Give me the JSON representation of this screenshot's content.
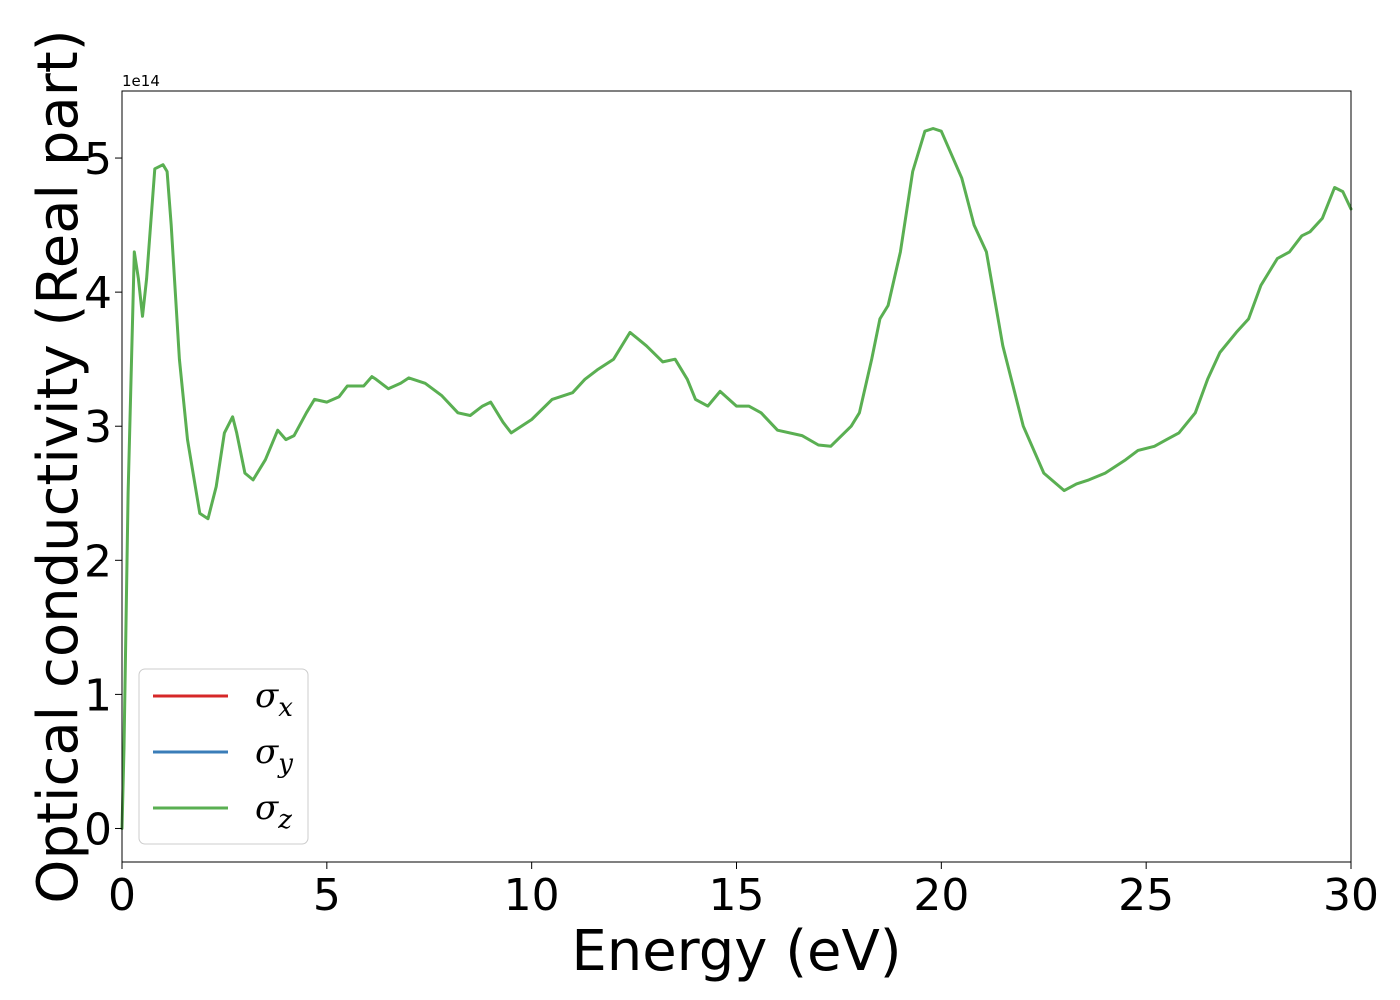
{
  "chart_data": {
    "type": "line",
    "title": "",
    "xlabel": "Energy (eV)",
    "ylabel": "Optical conductivity (Real part)",
    "y_offset_text": "1e14",
    "xlim": [
      0,
      30
    ],
    "ylim": [
      -0.25,
      5.5
    ],
    "y_scale_multiplier": 100000000000000.0,
    "x_ticks": [
      0,
      5,
      10,
      15,
      20,
      25,
      30
    ],
    "x_tick_labels": [
      "0",
      "5",
      "10",
      "15",
      "20",
      "25",
      "30"
    ],
    "y_ticks": [
      0,
      1,
      2,
      3,
      4,
      5
    ],
    "y_tick_labels": [
      "0",
      "1",
      "2",
      "3",
      "4",
      "5"
    ],
    "grid": false,
    "legend_position": "lower-left",
    "series": [
      {
        "name": "σx",
        "legend_main": "σ",
        "legend_sub": "x",
        "color": "#d62728",
        "x": [],
        "y": []
      },
      {
        "name": "σy",
        "legend_main": "σ",
        "legend_sub": "y",
        "color": "#3a7db8",
        "x": [],
        "y": []
      },
      {
        "name": "σz",
        "legend_main": "σ",
        "legend_sub": "z",
        "color": "#5aaf52",
        "x": [
          0,
          0.05,
          0.15,
          0.3,
          0.4,
          0.5,
          0.6,
          0.8,
          1.0,
          1.1,
          1.2,
          1.4,
          1.6,
          1.9,
          2.1,
          2.3,
          2.5,
          2.7,
          2.8,
          3.0,
          3.2,
          3.5,
          3.8,
          4.0,
          4.2,
          4.5,
          4.7,
          5.0,
          5.3,
          5.5,
          5.7,
          5.9,
          6.1,
          6.2,
          6.5,
          6.8,
          7.0,
          7.4,
          7.8,
          8.2,
          8.5,
          8.8,
          9.0,
          9.3,
          9.5,
          10.0,
          10.5,
          11.0,
          11.3,
          11.6,
          12.0,
          12.4,
          12.8,
          13.2,
          13.5,
          13.8,
          14.0,
          14.3,
          14.6,
          15.0,
          15.3,
          15.6,
          16.0,
          16.6,
          17.0,
          17.3,
          17.8,
          18.0,
          18.3,
          18.5,
          18.7,
          19.0,
          19.3,
          19.6,
          19.8,
          20.0,
          20.5,
          20.8,
          21.1,
          21.5,
          22.0,
          22.5,
          23.0,
          23.3,
          23.6,
          24.0,
          24.5,
          24.8,
          25.2,
          25.5,
          25.8,
          26.2,
          26.5,
          26.8,
          27.2,
          27.5,
          27.8,
          28.0,
          28.2,
          28.5,
          28.8,
          29.0,
          29.3,
          29.6,
          29.8,
          30.0
        ],
        "y": [
          0,
          0.6,
          2.5,
          4.3,
          4.1,
          3.82,
          4.1,
          4.92,
          4.95,
          4.9,
          4.5,
          3.5,
          2.9,
          2.35,
          2.31,
          2.55,
          2.95,
          3.07,
          2.95,
          2.65,
          2.6,
          2.75,
          2.97,
          2.9,
          2.93,
          3.1,
          3.2,
          3.18,
          3.22,
          3.3,
          3.3,
          3.3,
          3.37,
          3.35,
          3.28,
          3.32,
          3.36,
          3.32,
          3.23,
          3.1,
          3.08,
          3.15,
          3.18,
          3.03,
          2.95,
          3.05,
          3.2,
          3.25,
          3.35,
          3.42,
          3.5,
          3.7,
          3.6,
          3.48,
          3.5,
          3.35,
          3.2,
          3.15,
          3.26,
          3.15,
          3.15,
          3.1,
          2.97,
          2.93,
          2.86,
          2.85,
          3.0,
          3.1,
          3.5,
          3.8,
          3.9,
          4.3,
          4.9,
          5.2,
          5.22,
          5.2,
          4.85,
          4.5,
          4.3,
          3.6,
          3.0,
          2.65,
          2.52,
          2.57,
          2.6,
          2.65,
          2.75,
          2.82,
          2.85,
          2.9,
          2.95,
          3.1,
          3.35,
          3.55,
          3.7,
          3.8,
          4.05,
          4.15,
          4.25,
          4.3,
          4.42,
          4.45,
          4.55,
          4.78,
          4.75,
          4.62
        ]
      }
    ]
  }
}
